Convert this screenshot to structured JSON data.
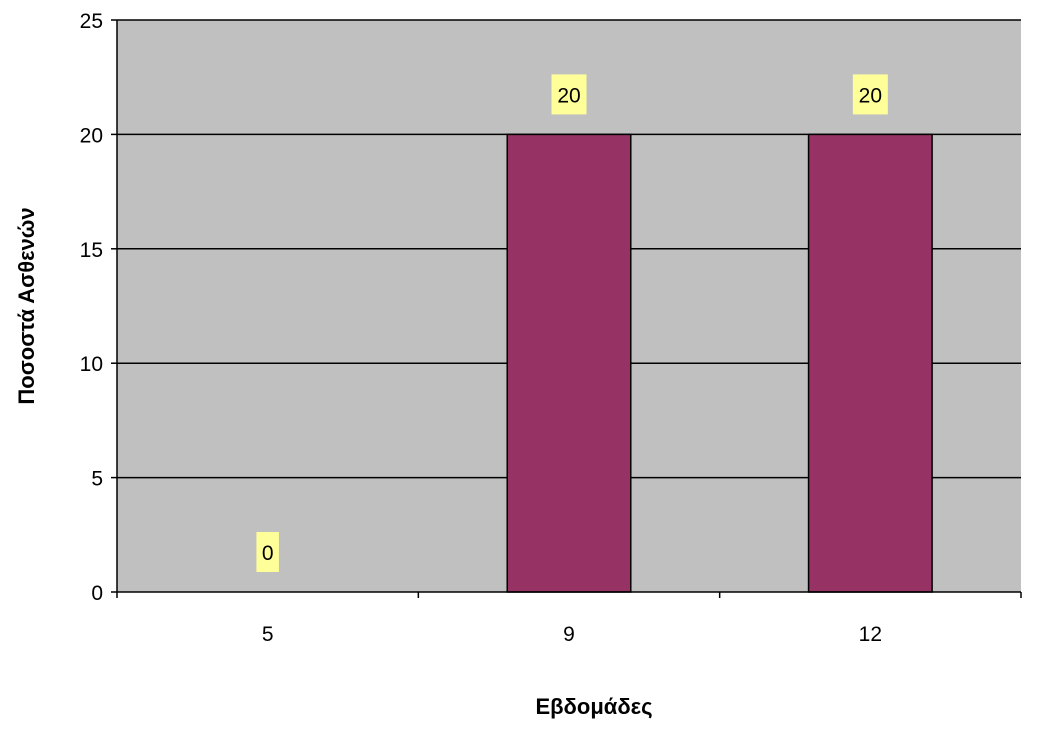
{
  "chart_data": {
    "type": "bar",
    "title": "",
    "xlabel": "Εβδομάδες",
    "ylabel": "Ποσοστά Ασθενών",
    "categories": [
      "5",
      "9",
      "12"
    ],
    "values": [
      0,
      20,
      20
    ],
    "data_labels": [
      "0",
      "20",
      "20"
    ],
    "ylim": [
      0,
      25
    ],
    "yticks": [
      0,
      5,
      10,
      15,
      20,
      25
    ],
    "grid": true,
    "legend": "none",
    "colors": {
      "bar": "#963264",
      "plot_background": "#c0c0c0",
      "label_background": "#ffff99",
      "gridline": "#000000"
    }
  }
}
